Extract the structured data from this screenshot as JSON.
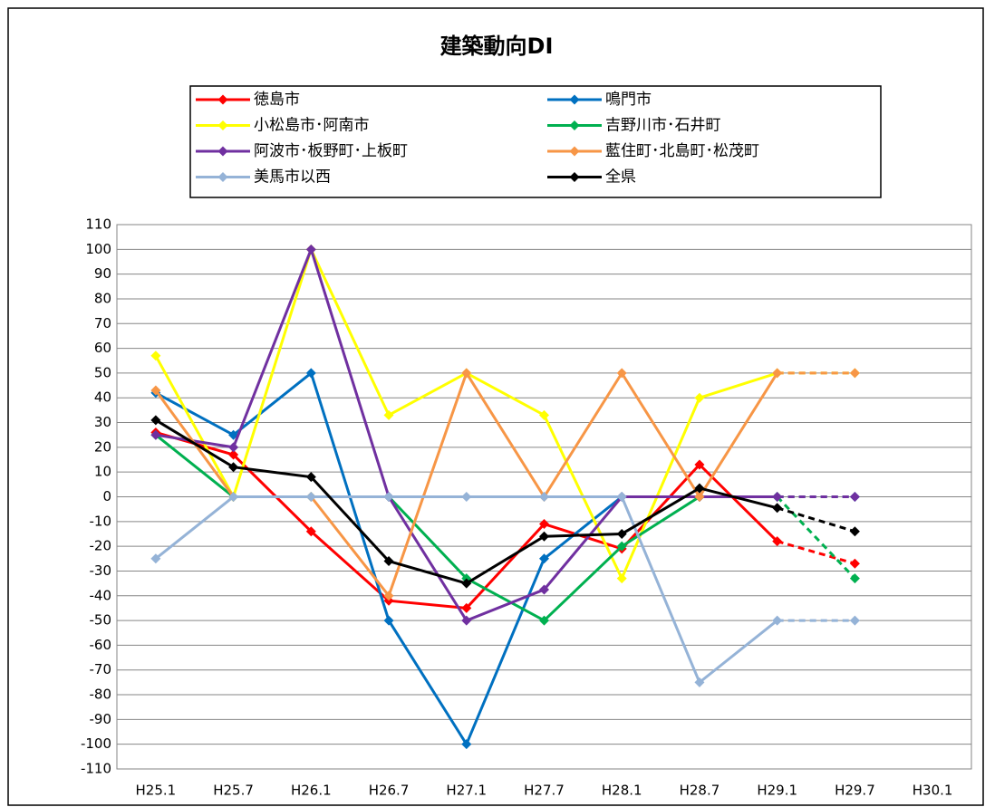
{
  "chart_data": {
    "type": "line",
    "title": "建築動向DI",
    "categories": [
      "H25.1",
      "H25.7",
      "H26.1",
      "H26.7",
      "H27.1",
      "H27.7",
      "H28.1",
      "H28.7",
      "H29.1",
      "H29.7",
      "H30.1"
    ],
    "series": [
      {
        "name": "徳島市",
        "color": "#ff0000",
        "values": [
          26,
          17,
          -14,
          -42,
          -45,
          -11,
          -21,
          13,
          -18,
          -27,
          null
        ]
      },
      {
        "name": "鳴門市",
        "color": "#0070c0",
        "values": [
          42,
          25,
          50,
          -50,
          -100,
          -25,
          0,
          0,
          0,
          0,
          null
        ]
      },
      {
        "name": "小松島市･阿南市",
        "color": "#ffff00",
        "values": [
          57,
          0,
          100,
          33,
          50,
          33,
          -33,
          40,
          50,
          50,
          null
        ]
      },
      {
        "name": "吉野川市･石井町",
        "color": "#00b050",
        "values": [
          25,
          0,
          0,
          0,
          -33,
          -50,
          -20,
          0,
          0,
          -33,
          null
        ]
      },
      {
        "name": "阿波市･板野町･上板町",
        "color": "#7030a0",
        "values": [
          25,
          20,
          100,
          0,
          -50,
          -37.5,
          0,
          0,
          0,
          0,
          null
        ]
      },
      {
        "name": "藍住町･北島町･松茂町",
        "color": "#f79646",
        "values": [
          43,
          0,
          0,
          -40,
          50,
          0,
          50,
          0,
          50,
          50,
          null
        ]
      },
      {
        "name": "美馬市以西",
        "color": "#95b3d7",
        "values": [
          -25,
          0,
          0,
          0,
          0,
          0,
          0,
          -75,
          -50,
          -50,
          null
        ]
      },
      {
        "name": "全県",
        "color": "#000000",
        "values": [
          31,
          12,
          8,
          -26,
          -35,
          -16,
          -15,
          3.5,
          -4.5,
          -14,
          null
        ]
      }
    ],
    "ylim": [
      -110,
      110
    ],
    "yticks": [
      -110,
      -100,
      -90,
      -80,
      -70,
      -60,
      -50,
      -40,
      -30,
      -20,
      -10,
      0,
      10,
      20,
      30,
      40,
      50,
      60,
      70,
      80,
      90,
      100,
      110
    ],
    "grid": true,
    "legend": "top",
    "dashed_last_segment": true
  }
}
